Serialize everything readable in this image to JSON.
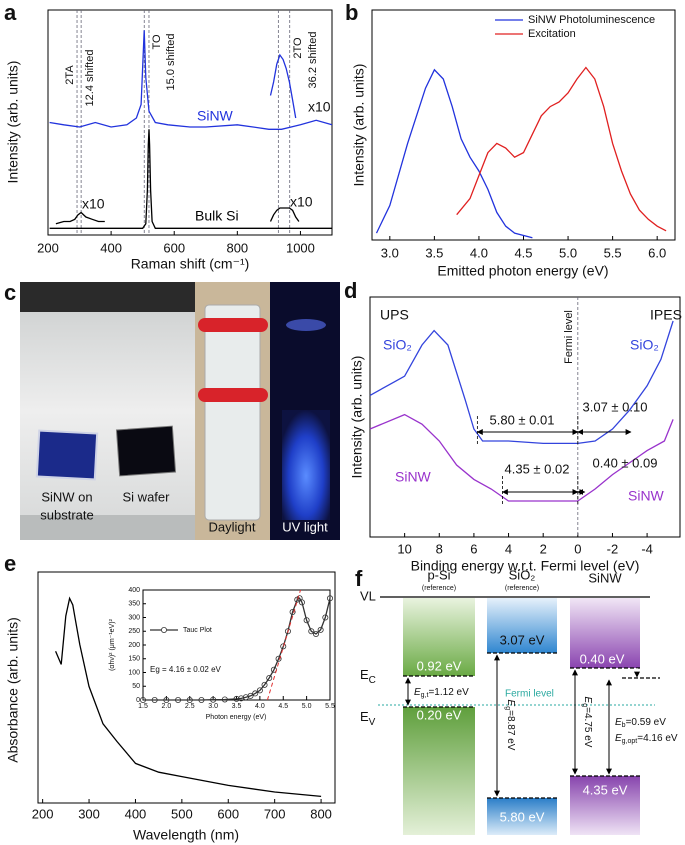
{
  "chart_data": [
    {
      "type": "line",
      "label": "a",
      "xlabel": "Raman shift (cm⁻¹)",
      "ylabel": "Intensity (arb. units)",
      "xlim": [
        200,
        1100
      ],
      "ylim": [
        0,
        100
      ],
      "xticks": [
        200,
        400,
        600,
        800,
        1000
      ],
      "vlines": [
        292,
        305,
        505,
        520,
        930,
        966
      ],
      "annotations": [
        "2TA",
        "12.4 shifted",
        "TO",
        "15.0 shifted",
        "2TO",
        "36.2 shifted",
        "x10",
        "x10",
        "x10"
      ],
      "series": [
        {
          "name": "SiNW",
          "color": "#2233dd",
          "x": [
            205,
            250,
            300,
            350,
            400,
            450,
            480,
            495,
            500,
            505,
            510,
            520,
            540,
            580,
            650,
            700,
            800,
            850,
            900,
            940,
            1000,
            1050,
            1100
          ],
          "values": [
            50,
            49,
            48,
            50,
            48,
            49,
            52,
            58,
            75,
            91,
            70,
            55,
            50,
            49,
            48,
            48,
            49,
            48,
            47,
            47,
            49,
            51,
            49
          ]
        },
        {
          "color": "#2233dd",
          "x": [
            905,
            915,
            925,
            935,
            945,
            955,
            965,
            975,
            985
          ],
          "values": [
            62,
            68,
            76,
            80,
            78,
            74,
            68,
            60,
            52
          ]
        },
        {
          "name": "Bulk Si",
          "color": "#000000",
          "x": [
            205,
            300,
            400,
            480,
            500,
            510,
            515,
            518,
            520,
            522,
            525,
            530,
            540,
            600,
            800,
            1000,
            1100
          ],
          "values": [
            3,
            3,
            3,
            3,
            3,
            5,
            20,
            40,
            47,
            40,
            20,
            6,
            3,
            3,
            3,
            3,
            3
          ]
        },
        {
          "color": "#000000",
          "x": [
            225,
            250,
            270,
            285,
            295,
            305,
            320,
            340,
            360,
            380
          ],
          "values": [
            5,
            6,
            6,
            7,
            9,
            10,
            8,
            7,
            6,
            6
          ]
        },
        {
          "color": "#000000",
          "x": [
            905,
            915,
            925,
            935,
            950,
            965,
            975,
            985,
            995
          ],
          "values": [
            6,
            9,
            11,
            12,
            12,
            12,
            11,
            8,
            6
          ]
        }
      ]
    },
    {
      "type": "line",
      "label": "b",
      "xlabel": "Emitted photon energy (eV)",
      "ylabel": "Intensity (arb. units)",
      "xlim": [
        2.8,
        6.2
      ],
      "ylim": [
        0,
        100
      ],
      "xticks": [
        {
          "value": 3,
          "label": "3.0"
        },
        3.5,
        {
          "value": 4,
          "label": "4.0"
        },
        4.5,
        {
          "value": 5,
          "label": "5.0"
        },
        5.5,
        {
          "value": 6,
          "label": "6.0"
        }
      ],
      "legend": "upper right",
      "series": [
        {
          "name": "SiNW Photoluminescence",
          "color": "#2233dd",
          "x": [
            2.85,
            3.0,
            3.2,
            3.4,
            3.5,
            3.6,
            3.7,
            3.8,
            3.9,
            4.0,
            4.1,
            4.2,
            4.3,
            4.4,
            4.6
          ],
          "values": [
            3,
            15,
            42,
            66,
            74,
            70,
            58,
            44,
            36,
            30,
            22,
            12,
            6,
            3,
            1
          ]
        },
        {
          "name": "Excitation",
          "color": "#e02020",
          "x": [
            3.75,
            3.9,
            4.0,
            4.1,
            4.2,
            4.3,
            4.4,
            4.5,
            4.6,
            4.7,
            4.8,
            4.9,
            5.0,
            5.1,
            5.2,
            5.3,
            5.4,
            5.5,
            5.6,
            5.7,
            5.8,
            5.9,
            6.0,
            6.1
          ],
          "values": [
            11,
            18,
            28,
            38,
            42,
            40,
            36,
            38,
            46,
            54,
            58,
            60,
            64,
            70,
            75,
            70,
            58,
            42,
            30,
            20,
            13,
            9,
            6,
            4
          ]
        }
      ]
    },
    {
      "type": "line",
      "label": "d",
      "xlabel": "Binding energy w.r.t. Fermi level (eV)",
      "ylabel": "Intensity (arb. units)",
      "xlim": [
        12,
        -5.9
      ],
      "ylim": [
        0,
        100
      ],
      "xticks": [
        10,
        8,
        6,
        4,
        2,
        0,
        -2,
        -4
      ],
      "vlines": [
        0
      ],
      "annotations": [
        "UPS",
        "IPES",
        "Fermi level"
      ],
      "arrows": [
        {
          "label": "5.80 ± 0.01",
          "from": 5.8,
          "to": 0
        },
        {
          "label": "3.07 ± 0.10",
          "from": 0,
          "to": -3.07
        },
        {
          "label": "4.35 ± 0.02",
          "from": 4.35,
          "to": 0
        },
        {
          "label": "0.40 ± 0.09",
          "from": 0,
          "to": -0.4
        }
      ],
      "series": [
        {
          "name": "SiO₂",
          "color": "#3344dd",
          "x": [
            12,
            10,
            9,
            8.3,
            7.5,
            6.5,
            6,
            5.5,
            4,
            2,
            0,
            -1,
            -2,
            -3,
            -4,
            -4.8,
            -5.5
          ],
          "values": [
            59,
            67,
            80,
            86,
            80,
            57,
            45,
            40,
            40,
            39,
            39,
            40,
            45,
            53,
            63,
            74,
            90
          ]
        },
        {
          "name": "SiNW",
          "color": "#9933cc",
          "x": [
            12,
            10,
            9,
            8,
            7,
            6,
            5,
            4,
            2,
            0,
            -1,
            -2,
            -3,
            -4,
            -5,
            -5.5
          ],
          "values": [
            45,
            51,
            47,
            40,
            30,
            24,
            20,
            15,
            15,
            15,
            20,
            26,
            31,
            36,
            40,
            49
          ]
        }
      ]
    },
    {
      "type": "line",
      "label": "e",
      "xlabel": "Wavelength (nm)",
      "ylabel": "Absorbance (arb. units)",
      "xlim": [
        190,
        830
      ],
      "ylim": [
        0,
        105
      ],
      "xticks": [
        200,
        300,
        400,
        500,
        600,
        700,
        800
      ],
      "series": [
        {
          "color": "#000000",
          "x": [
            228,
            240,
            250,
            258,
            265,
            270,
            280,
            300,
            330,
            360,
            400,
            450,
            500,
            600,
            700,
            800
          ],
          "values": [
            69,
            63,
            85,
            93,
            90,
            84,
            72,
            53,
            36,
            28,
            18,
            14,
            12,
            8,
            5,
            3
          ]
        }
      ]
    },
    {
      "type": "line",
      "xlabel": "Photon energy (eV)",
      "ylabel": "(αhν)² (μm⁻¹eV)²",
      "xlim": [
        1.5,
        5.5
      ],
      "ylim": [
        0,
        400
      ],
      "xticks": [
        1.5,
        {
          "value": 2,
          "label": "2.0"
        },
        2.5,
        {
          "value": 3,
          "label": "3.0"
        },
        3.5,
        {
          "value": 4,
          "label": "4.0"
        },
        4.5,
        {
          "value": 5,
          "label": "5.0"
        },
        5.5
      ],
      "yticks": [
        0,
        50,
        100,
        150,
        200,
        250,
        300,
        350,
        400
      ],
      "legend": "upper left",
      "annotations": [
        "Eg = 4.16 ± 0.02 eV"
      ],
      "series": [
        {
          "name": "Tauc Plot",
          "color": "#333333",
          "marker": "circle",
          "x": [
            1.5,
            1.75,
            2.0,
            2.25,
            2.5,
            2.75,
            3.0,
            3.25,
            3.5,
            3.6,
            3.7,
            3.8,
            3.9,
            4.0,
            4.1,
            4.2,
            4.3,
            4.4,
            4.5,
            4.6,
            4.7,
            4.8,
            4.85,
            4.9,
            5.0,
            5.1,
            5.2,
            5.3,
            5.4,
            5.5
          ],
          "values": [
            0,
            0,
            0,
            0,
            0,
            0,
            1,
            2,
            4,
            6,
            10,
            15,
            24,
            35,
            55,
            80,
            110,
            150,
            195,
            250,
            320,
            365,
            370,
            355,
            290,
            250,
            240,
            255,
            300,
            370
          ]
        },
        {
          "color": "#e03030",
          "dash": true,
          "x": [
            4.16,
            4.87
          ],
          "values": [
            0,
            400
          ]
        }
      ]
    }
  ],
  "photo": {
    "label": "c",
    "captions": [
      "SiNW on",
      "substrate",
      "Si wafer",
      "Daylight",
      "UV light"
    ]
  },
  "diagram": {
    "label": "f",
    "columns": [
      {
        "name": "p-Si",
        "note": "(reference)"
      },
      {
        "name": "SiO₂",
        "note": "(reference)"
      },
      {
        "name": "SiNW"
      }
    ],
    "levels": [
      {
        "main": "VL"
      },
      {
        "main": "E",
        "sub": "C"
      },
      {
        "main": "E",
        "sub": "V"
      }
    ],
    "fermi": "Fermi level",
    "energies": [
      "0.92 eV",
      "0.20 eV",
      "3.07 eV",
      "5.80 eV",
      "0.40 eV",
      "4.35 eV"
    ],
    "gaps": [
      {
        "main": "E",
        "sub": "g,t",
        "rest": "=1.12 eV"
      },
      {
        "main": "E",
        "sub": "g",
        "rest": "=8.87 eV"
      },
      {
        "main": "E",
        "sub": "g",
        "rest": "=4.75 eV"
      },
      {
        "main": "E",
        "sub": "b",
        "rest": "=0.59 eV"
      },
      {
        "main": "E",
        "sub": "g,opt",
        "rest": "=4.16 eV"
      }
    ]
  }
}
